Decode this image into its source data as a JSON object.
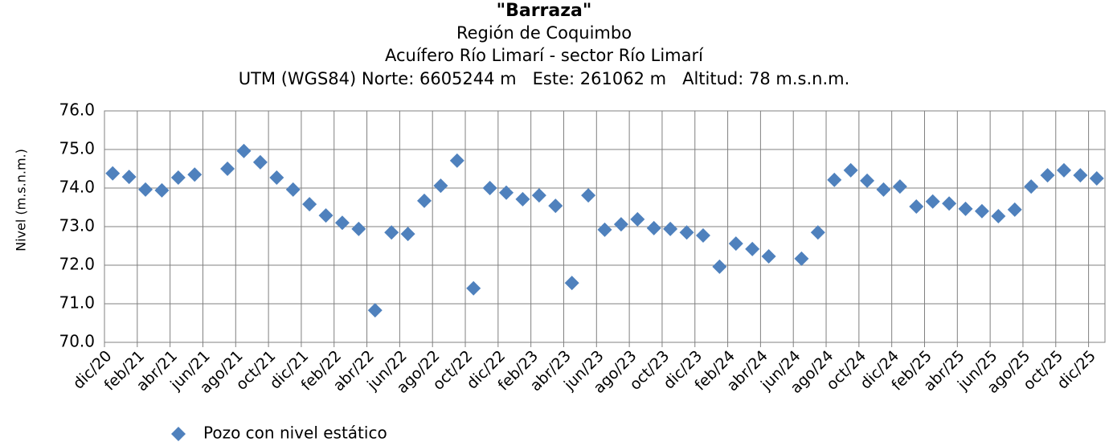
{
  "chart_data": {
    "type": "scatter",
    "title": "\"Barraza\"",
    "subtitle_lines": [
      "Región de Coquimbo",
      "Acuífero Río Limarí - sector Río Limarí",
      "UTM (WGS84) Norte: 6605244 m   Este: 261062 m   Altitud: 78 m.s.n.m."
    ],
    "y_label": "Nivel (m.s.n.m.)",
    "categories": [
      "dic/20",
      null,
      "feb/21",
      null,
      "abr/21",
      null,
      "jun/21",
      null,
      "ago/21",
      null,
      "oct/21",
      null,
      "dic/21",
      null,
      "feb/22",
      null,
      "abr/22",
      null,
      "jun/22",
      null,
      "ago/22",
      null,
      "oct/22",
      null,
      "dic/22",
      null,
      "feb/23",
      null,
      "abr/23",
      null,
      "jun/23",
      null,
      "ago/23",
      null,
      "oct/23",
      null,
      "dic/23",
      null,
      "feb/24",
      null,
      "abr/24",
      null,
      "jun/24",
      null,
      "ago/24",
      null,
      "oct/24",
      null,
      "dic/24",
      null,
      "feb/25",
      null,
      "abr/25",
      null,
      "jun/25",
      null,
      "ago/25",
      null,
      "oct/25",
      null,
      "dic/25"
    ],
    "series": [
      {
        "name": "Pozo con nivel estático",
        "color": "#4f81bd",
        "values": [
          74.38,
          74.29,
          73.96,
          73.94,
          74.27,
          74.35,
          null,
          74.5,
          74.96,
          74.67,
          74.27,
          73.96,
          73.58,
          73.29,
          73.1,
          72.94,
          70.83,
          72.85,
          72.81,
          73.67,
          74.06,
          74.71,
          71.4,
          74.0,
          73.88,
          73.71,
          73.81,
          73.54,
          71.54,
          73.81,
          72.92,
          73.06,
          73.19,
          72.96,
          72.94,
          72.85,
          72.77,
          71.96,
          72.56,
          72.42,
          72.23,
          null,
          72.17,
          72.85,
          74.21,
          74.46,
          74.19,
          73.96,
          74.04,
          73.52,
          73.65,
          73.6,
          73.46,
          73.4,
          73.27,
          73.44,
          74.04,
          74.33,
          74.46,
          74.33,
          74.25
        ]
      }
    ],
    "ylim": [
      70,
      76
    ],
    "yticks": [
      {
        "value": 70,
        "label": "70.0"
      },
      {
        "value": 71,
        "label": "71.0"
      },
      {
        "value": 72,
        "label": "72.0"
      },
      {
        "value": 73,
        "label": "73.0"
      },
      {
        "value": 74,
        "label": "74.0"
      },
      {
        "value": 75,
        "label": "75.0"
      },
      {
        "value": 76,
        "label": "76.0"
      }
    ],
    "grid": true
  }
}
